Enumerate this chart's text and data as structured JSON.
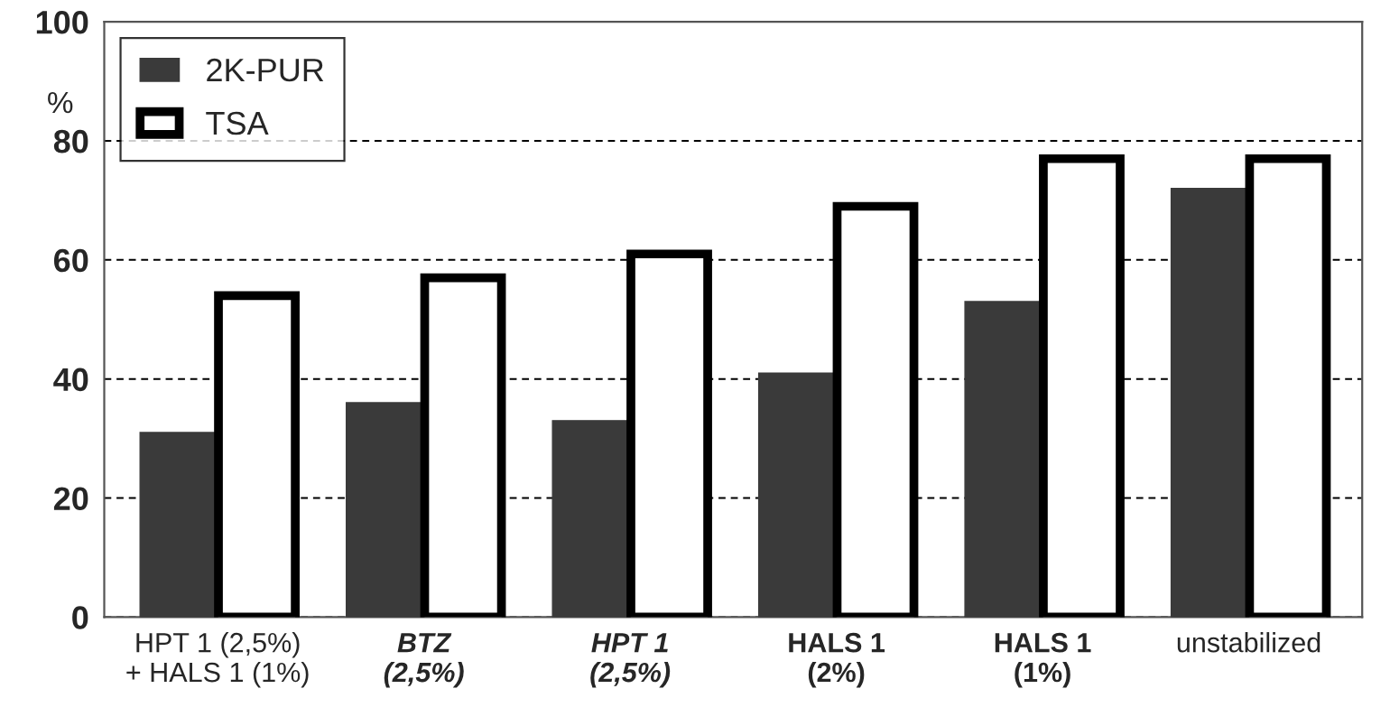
{
  "chart_data": {
    "type": "bar",
    "ylabel": "%",
    "categories": [
      "HPT 1 (2,5%)\n+ HALS 1 (1%)",
      "BTZ\n(2,5%)",
      "HPT 1\n(2,5%)",
      "HALS 1\n(2%)",
      "HALS 1\n(1%)",
      "unstabilized"
    ],
    "series": [
      {
        "name": "2K-PUR",
        "color": "#3a3a3a",
        "values": [
          31,
          36,
          33,
          41,
          53,
          72
        ]
      },
      {
        "name": "TSA",
        "color": "#ffffff",
        "values": [
          54,
          57,
          61,
          69,
          77,
          77
        ]
      }
    ],
    "ylim": [
      0,
      100
    ],
    "yticks": [
      0,
      20,
      40,
      60,
      80,
      100
    ],
    "grid": "y",
    "legend": "top left"
  }
}
